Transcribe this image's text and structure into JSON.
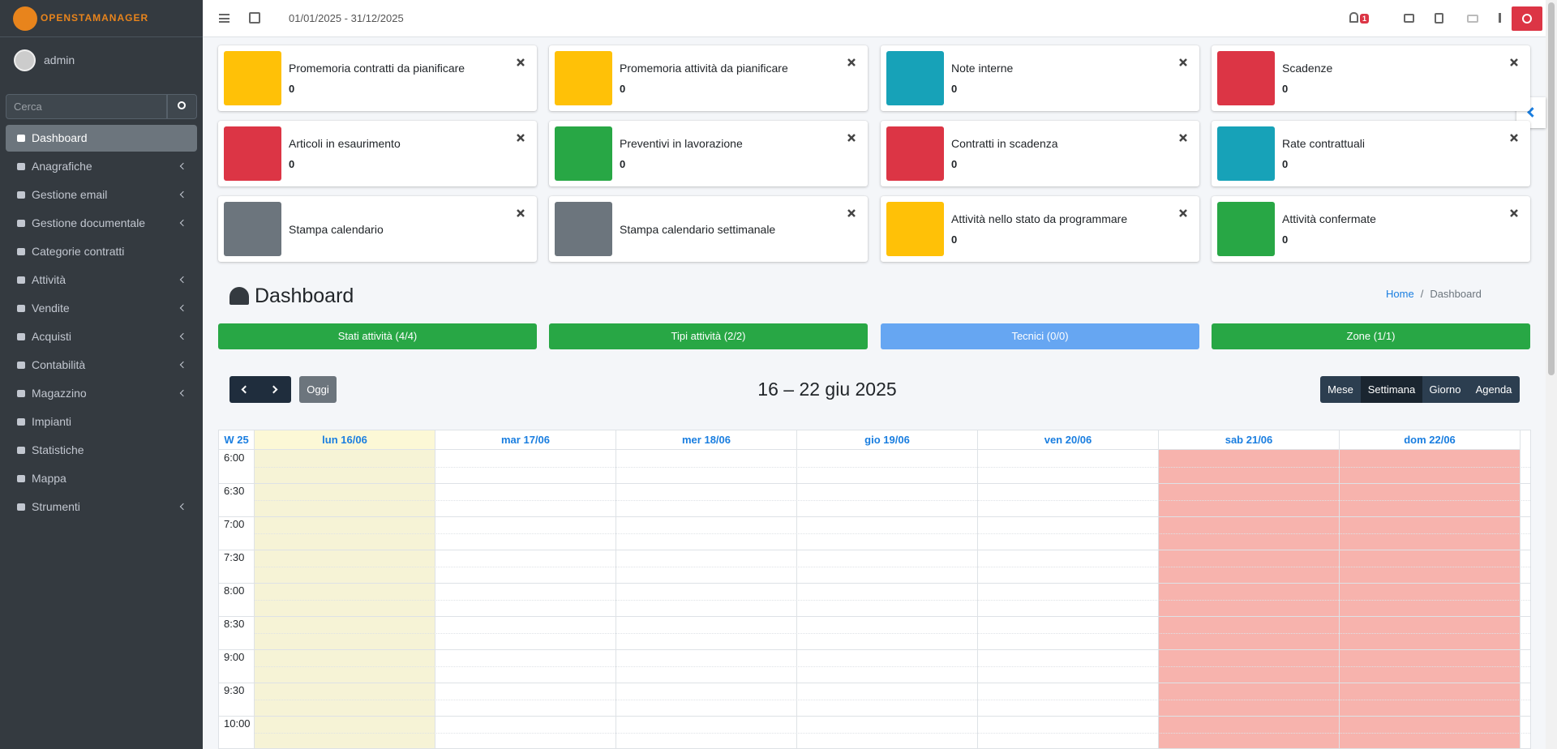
{
  "header": {
    "logo": "OPENSTAMANAGER",
    "date_range": "01/01/2025 - 31/12/2025",
    "notifications": 1
  },
  "sidebar": {
    "user": "admin",
    "search_placeholder": "Cerca",
    "active": 0,
    "menu": [
      {
        "label": "Dashboard",
        "sub": false
      },
      {
        "label": "Anagrafiche",
        "sub": true
      },
      {
        "label": "Gestione email",
        "sub": true
      },
      {
        "label": "Gestione documentale",
        "sub": true
      },
      {
        "label": "Categorie contratti",
        "sub": false
      },
      {
        "label": "Attività",
        "sub": true
      },
      {
        "label": "Vendite",
        "sub": true
      },
      {
        "label": "Acquisti",
        "sub": true
      },
      {
        "label": "Contabilità",
        "sub": true
      },
      {
        "label": "Magazzino",
        "sub": true
      },
      {
        "label": "Impianti",
        "sub": false
      },
      {
        "label": "Statistiche",
        "sub": false
      },
      {
        "label": "Mappa",
        "sub": false
      },
      {
        "label": "Strumenti",
        "sub": true
      }
    ]
  },
  "widgets": [
    {
      "title": "Promemoria contratti da pianificare",
      "value": 0,
      "color": "#ffc107"
    },
    {
      "title": "Promemoria attività da pianificare",
      "value": 0,
      "color": "#ffc107"
    },
    {
      "title": "Note interne",
      "value": 0,
      "color": "#17a2b8"
    },
    {
      "title": "Scadenze",
      "value": 0,
      "color": "#dc3545"
    },
    {
      "title": "Articoli in esaurimento",
      "value": 0,
      "color": "#dc3545"
    },
    {
      "title": "Preventivi in lavorazione",
      "value": 0,
      "color": "#28a745"
    },
    {
      "title": "Contratti in scadenza",
      "value": 0,
      "color": "#dc3545"
    },
    {
      "title": "Rate contrattuali",
      "value": 0,
      "color": "#17a2b8"
    },
    {
      "title": "Stampa calendario",
      "color": "#6c757d"
    },
    {
      "title": "Stampa calendario settimanale",
      "color": "#6c757d"
    },
    {
      "title": "Attività nello stato da programmare",
      "value": 0,
      "color": "#ffc107"
    },
    {
      "title": "Attività confermate",
      "value": 0,
      "color": "#28a745"
    }
  ],
  "page": {
    "title": "Dashboard",
    "breadcrumb": [
      "Home",
      "Dashboard"
    ]
  },
  "filters": [
    {
      "label": "Stati attività (4/4)",
      "color": "#28a745"
    },
    {
      "label": "Tipi attività (2/2)",
      "color": "#28a745"
    },
    {
      "label": "Tecnici (0/0)",
      "color": "#66a6f2"
    },
    {
      "label": "Zone (1/1)",
      "color": "#28a745"
    }
  ],
  "calendar": {
    "title": "16 – 22 giu 2025",
    "today_button": "Oggi",
    "views": [
      "Mese",
      "Settimana",
      "Giorno",
      "Agenda"
    ],
    "active_view": 1,
    "week": "W 25",
    "days": [
      "lun 16/06",
      "mar 17/06",
      "mer 18/06",
      "gio 19/06",
      "ven 20/06",
      "sab 21/06",
      "dom 22/06"
    ],
    "today_index": 0,
    "weekend": [
      5,
      6
    ],
    "times": [
      "6:00",
      "6:30",
      "7:00",
      "7:30",
      "8:00",
      "8:30",
      "9:00",
      "9:30",
      "10:00"
    ]
  }
}
